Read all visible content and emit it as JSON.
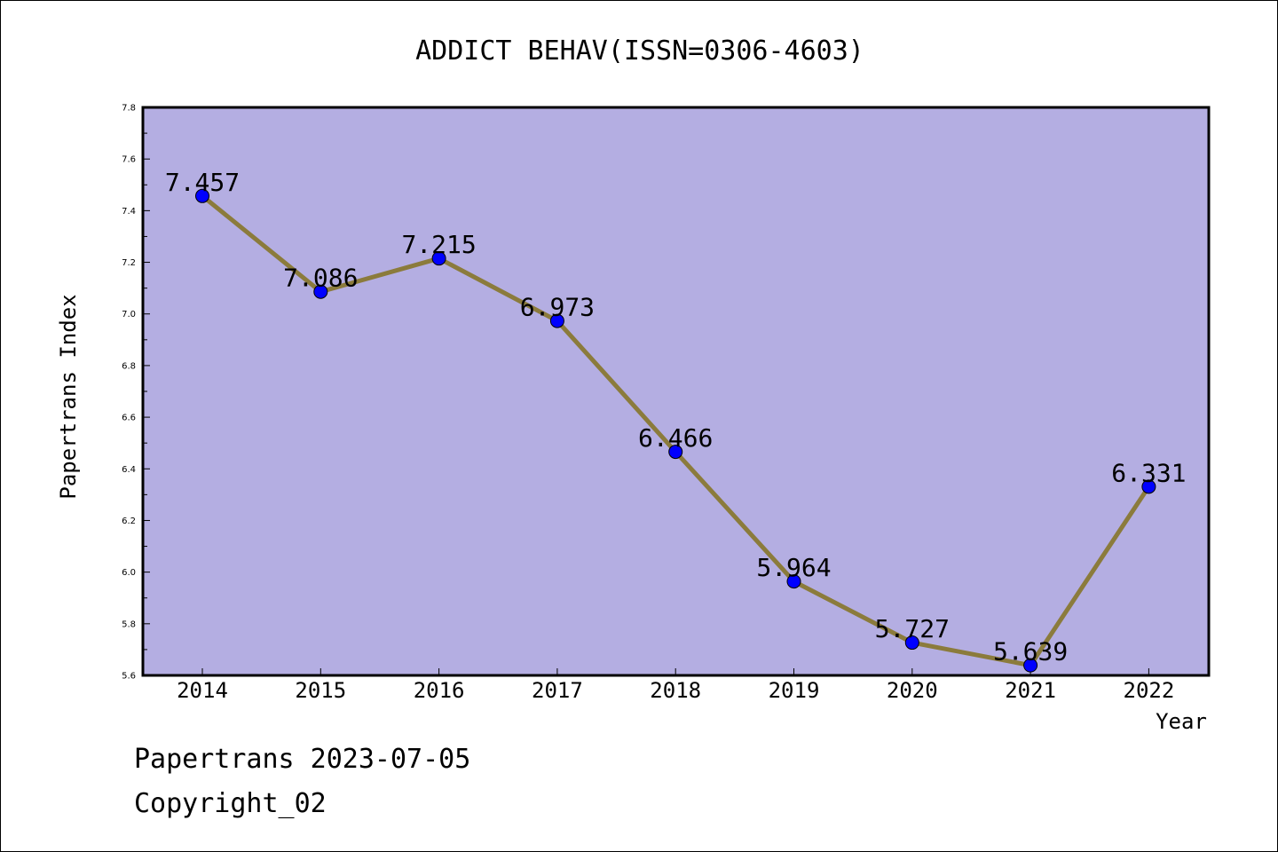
{
  "chart_data": {
    "type": "line",
    "title": "ADDICT BEHAV(ISSN=0306-4603)",
    "xlabel": "Year",
    "ylabel": "Papertrans Index",
    "categories": [
      "2014",
      "2015",
      "2016",
      "2017",
      "2018",
      "2019",
      "2020",
      "2021",
      "2022"
    ],
    "values": [
      7.457,
      7.086,
      7.215,
      6.973,
      6.466,
      5.964,
      5.727,
      5.639,
      6.331
    ],
    "data_labels": [
      "7.457",
      "7.086",
      "7.215",
      "6.973",
      "6.466",
      "5.964",
      "5.727",
      "5.639",
      "6.331"
    ],
    "ylim": [
      5.6,
      7.8
    ],
    "yticks": [
      "5.6",
      "5.8",
      "6.0",
      "6.2",
      "6.4",
      "6.6",
      "6.8",
      "7.0",
      "7.2",
      "7.4",
      "7.6",
      "7.8"
    ],
    "grid": false,
    "legend": "none",
    "colors": {
      "plot_background": "#b4aee2",
      "line": "#8b7b3c",
      "marker": "#0000ff"
    }
  },
  "footer": {
    "line1": "Papertrans 2023-07-05",
    "line2": "Copyright_02"
  }
}
